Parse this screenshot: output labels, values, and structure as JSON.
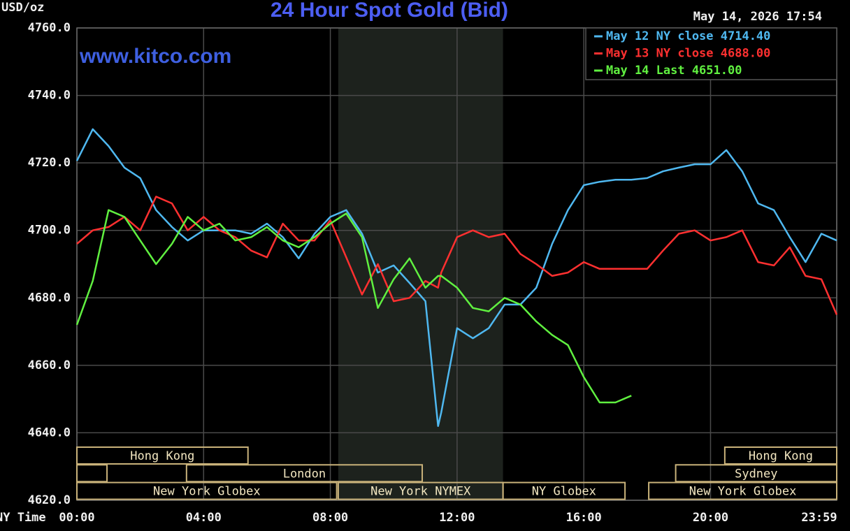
{
  "chart_data": {
    "type": "line",
    "title": "24 Hour Spot Gold (Bid)",
    "y_label": "USD/oz",
    "x_label": "NY Time",
    "watermark": "www.kitco.com",
    "timestamp": "May 14, 2026 17:54",
    "xlim": [
      0,
      23.983
    ],
    "ylim": [
      4620,
      4760
    ],
    "xticks": [
      {
        "value": 0,
        "label": "00:00"
      },
      {
        "value": 4,
        "label": "04:00"
      },
      {
        "value": 8,
        "label": "08:00"
      },
      {
        "value": 12,
        "label": "12:00"
      },
      {
        "value": 16,
        "label": "16:00"
      },
      {
        "value": 20,
        "label": "20:00"
      },
      {
        "value": 23.983,
        "label": "23:59"
      }
    ],
    "yticks": [
      {
        "value": 4620,
        "label": "4620.0"
      },
      {
        "value": 4640,
        "label": "4640.0"
      },
      {
        "value": 4660,
        "label": "4660.0"
      },
      {
        "value": 4680,
        "label": "4680.0"
      },
      {
        "value": 4700,
        "label": "4700.0"
      },
      {
        "value": 4720,
        "label": "4720.0"
      },
      {
        "value": 4740,
        "label": "4740.0"
      },
      {
        "value": 4760,
        "label": "4760.0"
      }
    ],
    "grid": true,
    "legend": "top-right",
    "shaded": [
      8.25,
      13.45
    ],
    "x": [
      0,
      0.5,
      1,
      1.5,
      2,
      2.5,
      3,
      3.5,
      4,
      4.5,
      5,
      5.5,
      6,
      6.5,
      7,
      7.5,
      8,
      8.5,
      9,
      9.5,
      10,
      10.5,
      11,
      11.4,
      11.5,
      12,
      12.5,
      13,
      13.5,
      14,
      14.5,
      15,
      15.5,
      16,
      16.5,
      17,
      17.5,
      18,
      18.5,
      19,
      19.5,
      20,
      20.5,
      21,
      21.5,
      22,
      22.5,
      23,
      23.5,
      23.983
    ],
    "series": [
      {
        "name": "May 12 NY close 4714.40",
        "color": "#4fb8f0",
        "values": [
          4720.6,
          4730,
          4725,
          4718.6,
          4715.5,
          4706,
          4701,
          4697,
          4700,
          4700,
          4700,
          4699,
          4702,
          4698,
          4691.7,
          4699,
          4704,
          4706,
          4699,
          4687.5,
          4689.6,
          4684.4,
          4679,
          4642,
          4646,
          4671,
          4668,
          4671,
          4678,
          4678,
          4683,
          4696,
          4706,
          4713.4,
          4714.4,
          4715,
          4715,
          4715.5,
          4717.5,
          4718.6,
          4719.6,
          4719.6,
          4723.8,
          4717.5,
          4708,
          4706,
          4698,
          4690.6,
          4699,
          4697
        ]
      },
      {
        "name": "May 13 NY close 4688.00",
        "color": "#ff3030",
        "values": [
          4696,
          4700,
          4701,
          4704,
          4700,
          4710,
          4708,
          4700,
          4704,
          4700,
          4698,
          4694,
          4692,
          4702,
          4697,
          4697,
          4703,
          4692,
          4681,
          4690,
          4679,
          4680,
          4685,
          4683,
          4687.5,
          4698,
          4700,
          4698,
          4699,
          4693,
          4690,
          4686.5,
          4687.5,
          4690.6,
          4688.6,
          4688.6,
          4688.6,
          4688.6,
          4694,
          4699,
          4700,
          4697,
          4698,
          4700,
          4690.6,
          4689.6,
          4695,
          4686.5,
          4685.5,
          4675
        ]
      },
      {
        "name": "May 14 Last 4651.00",
        "color": "#60f040",
        "values": [
          4672,
          4685,
          4706,
          4704,
          4697,
          4690,
          4696,
          4704,
          4700,
          4702,
          4697,
          4698,
          4701,
          4697,
          4695,
          4698,
          4702,
          4705,
          4698,
          4677,
          4685.5,
          4691.7,
          4683,
          4686.5,
          4686.5,
          4683,
          4677,
          4676,
          4680,
          4678,
          4673,
          4669,
          4666,
          4656.5,
          4649,
          4649,
          4651,
          null,
          null,
          null,
          null,
          null,
          null,
          null,
          null,
          null,
          null,
          null,
          null,
          null
        ]
      }
    ],
    "sessions": [
      [
        {
          "label": "Hong Kong",
          "start": 0,
          "end": 5.4
        },
        {
          "label": "Hong Kong",
          "start": 20.45,
          "end": 23.983
        }
      ],
      [
        {
          "label": null,
          "start": 0,
          "end": 0.95
        },
        {
          "label": "London",
          "start": 3.46,
          "end": 10.9
        },
        {
          "label": "Sydney",
          "start": 18.9,
          "end": 23.983
        }
      ],
      [
        {
          "label": "New York Globex",
          "start": 0,
          "end": 8.2
        },
        {
          "label": "New York NYMEX",
          "start": 8.25,
          "end": 13.45
        },
        {
          "label": "NY Globex",
          "start": 13.45,
          "end": 17.3
        },
        {
          "label": "New York Globex",
          "start": 18.05,
          "end": 23.983
        }
      ]
    ]
  }
}
